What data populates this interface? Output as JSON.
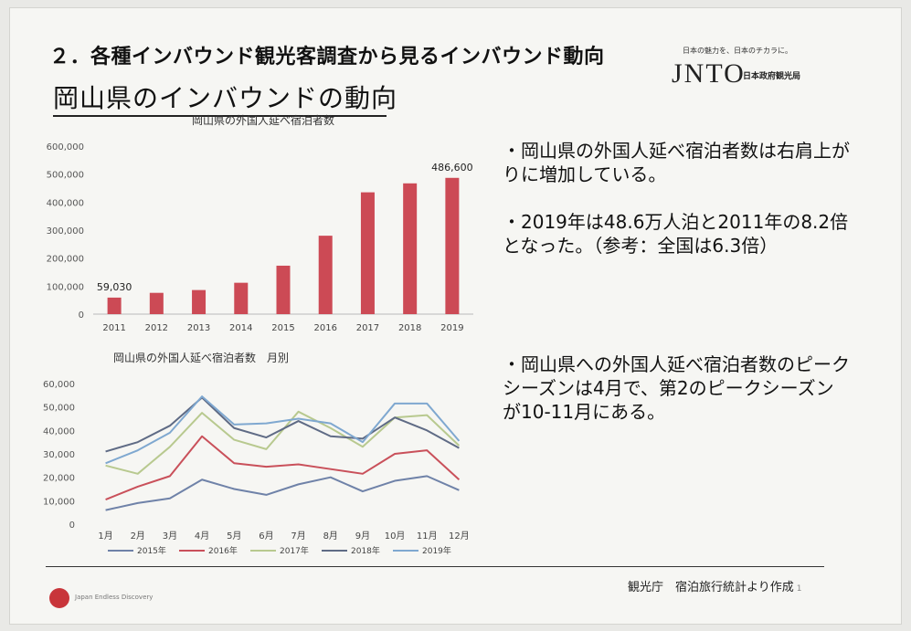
{
  "header": {
    "section_title": "２．各種インバウンド観光客調査から見るインバウンド動向",
    "page_title": "岡山県のインバウンドの動向"
  },
  "brand": {
    "tagline": "日本の魅力を、日本のチカラに。",
    "logo": "JNTO",
    "org_name": "日本政府観光局"
  },
  "bullets": [
    "・岡山県の外国人延べ宿泊者数は右肩上がりに増加している。",
    "・2019年は48.6万人泊と2011年の8.2倍となった。（参考：全国は6.3倍）",
    "・岡山県への外国人延べ宿泊者数のピークシーズンは4月で、第2のピークシーズンが10-11月にある。"
  ],
  "chart_data": [
    {
      "type": "bar",
      "title": "岡山県の外国人延べ宿泊者数",
      "categories": [
        "2011",
        "2012",
        "2013",
        "2014",
        "2015",
        "2016",
        "2017",
        "2018",
        "2019"
      ],
      "values": [
        59030,
        76000,
        86000,
        112000,
        173000,
        280000,
        435000,
        467000,
        486600
      ],
      "value_labels": [
        "59,030",
        "",
        "",
        "",
        "",
        "",
        "",
        "",
        "486,600"
      ],
      "y_ticks": [
        "0",
        "100,000",
        "200,000",
        "300,000",
        "400,000",
        "500,000",
        "600,000"
      ],
      "ylim": [
        0,
        600000
      ],
      "bar_color": "#cc4a55"
    },
    {
      "type": "line",
      "title": "岡山県の外国人延べ宿泊者数　月別",
      "categories": [
        "1月",
        "2月",
        "3月",
        "4月",
        "5月",
        "6月",
        "7月",
        "8月",
        "9月",
        "10月",
        "11月",
        "12月"
      ],
      "y_ticks": [
        "0",
        "10,000",
        "20,000",
        "30,000",
        "40,000",
        "50,000",
        "60,000"
      ],
      "ylim": [
        0,
        60000
      ],
      "series": [
        {
          "name": "2015年",
          "color": "#6f82a8",
          "values": [
            6000,
            9000,
            11000,
            19000,
            15000,
            12500,
            17000,
            20000,
            14000,
            18500,
            20500,
            14500
          ]
        },
        {
          "name": "2016年",
          "color": "#c9505a",
          "values": [
            10500,
            16000,
            20500,
            37500,
            26000,
            24500,
            25500,
            23500,
            21500,
            30000,
            31500,
            19000
          ]
        },
        {
          "name": "2017年",
          "color": "#b8c98f",
          "values": [
            25000,
            21500,
            33000,
            47500,
            36000,
            32000,
            48000,
            41000,
            33000,
            45500,
            46500,
            33500
          ]
        },
        {
          "name": "2018年",
          "color": "#5f6b85",
          "values": [
            31000,
            35000,
            42000,
            54000,
            41000,
            37000,
            44000,
            37500,
            36500,
            45500,
            40000,
            32500
          ]
        },
        {
          "name": "2019年",
          "color": "#7fa8d0",
          "values": [
            26000,
            31500,
            39000,
            54500,
            42500,
            43000,
            45000,
            43000,
            35000,
            51500,
            51500,
            35500
          ]
        }
      ]
    }
  ],
  "footer": {
    "source": "観光庁　宿泊旅行統計より作成",
    "page_number": "1",
    "logo_text": "Japan Endless Discovery"
  }
}
